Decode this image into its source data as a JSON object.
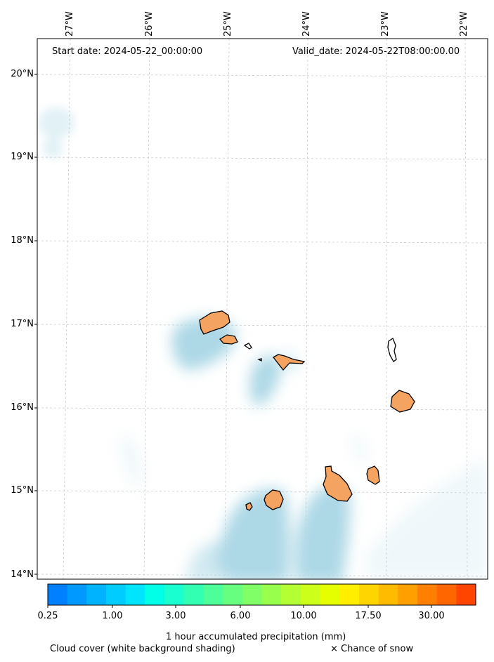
{
  "map": {
    "start_date": "Start date: 2024-05-22_00:00:00",
    "valid_date": "Valid_date: 2024-05-22T08:00:00.00",
    "longitude_labels": [
      "27°W",
      "26°W",
      "25°W",
      "24°W",
      "23°W",
      "22°W"
    ],
    "latitude_labels": [
      "20°N",
      "19°N",
      "18°N",
      "17°N",
      "16°N",
      "15°N",
      "14°N"
    ],
    "cloud_color": "#add8e6",
    "land_color": "#f4a460"
  },
  "colorbar": {
    "label": "1 hour accumulated precipitation (mm)",
    "tick_labels": [
      "0.25",
      "1.00",
      "3.00",
      "6.00",
      "10.00",
      "17.50",
      "30.00"
    ],
    "colors": [
      "#0080ff",
      "#0099ff",
      "#00b3ff",
      "#00ccff",
      "#00e5ff",
      "#00ffe6",
      "#1affd0",
      "#33ffb3",
      "#4dff99",
      "#66ff80",
      "#80ff66",
      "#99ff4d",
      "#b3ff33",
      "#ccff1a",
      "#e6ff00",
      "#ffee00",
      "#ffd500",
      "#ffbb00",
      "#ffa000",
      "#ff8000",
      "#ff6600",
      "#ff4500"
    ]
  },
  "legend": {
    "cloud_note": "Cloud cover (white background shading)",
    "snow_note": "× Chance of snow"
  }
}
